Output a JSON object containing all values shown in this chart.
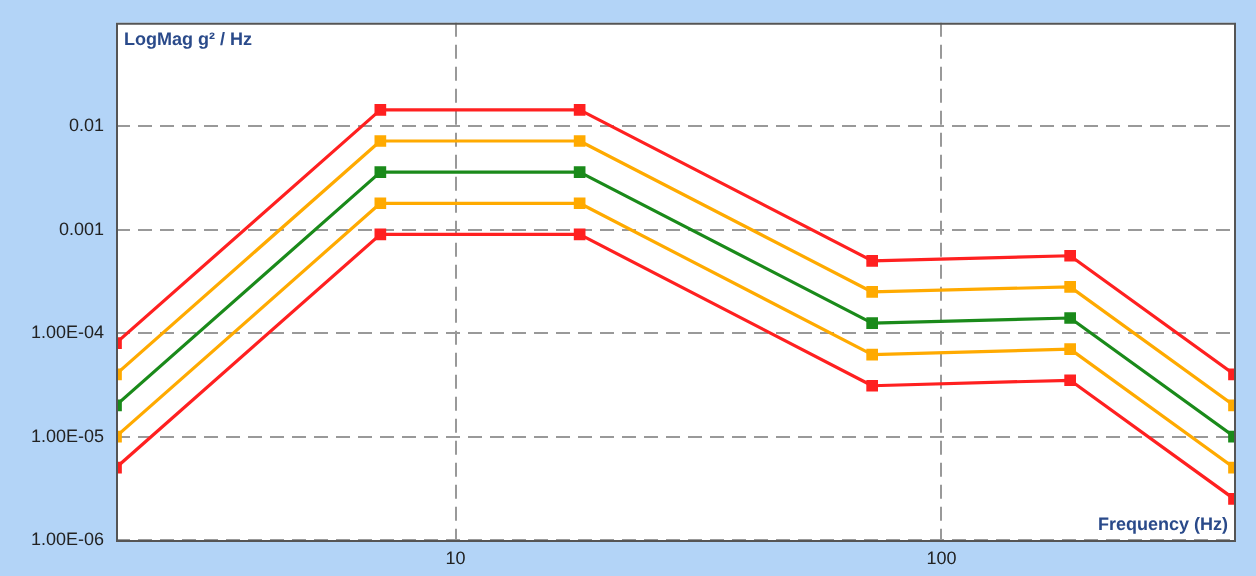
{
  "chart_data": {
    "type": "line",
    "ylabel": "LogMag g² / Hz",
    "xlabel": "Frequency (Hz)",
    "log": "xy",
    "grid": true,
    "legend": false,
    "marker": "square",
    "line_style": "solid",
    "x": [
      2,
      7,
      18,
      72,
      184,
      400
    ],
    "xlim": [
      2,
      400
    ],
    "xticks": [
      10,
      100
    ],
    "ylim": [
      1e-06,
      0.1
    ],
    "yticks": [
      {
        "value": 1e-06,
        "label": "1.00E-06"
      },
      {
        "value": 1e-05,
        "label": "1.00E-05"
      },
      {
        "value": 0.0001,
        "label": "1.00E-04"
      },
      {
        "value": 0.001,
        "label": "0.001"
      },
      {
        "value": 0.01,
        "label": "0.01"
      }
    ],
    "series": [
      {
        "color": "#ff2020",
        "values": [
          8e-05,
          0.0144,
          0.0144,
          0.0005,
          0.00056,
          4e-05
        ]
      },
      {
        "color": "#ffaa00",
        "values": [
          4e-05,
          0.0072,
          0.0072,
          0.00025,
          0.00028,
          2e-05
        ]
      },
      {
        "color": "#1a8a1a",
        "values": [
          2e-05,
          0.0036,
          0.0036,
          0.000125,
          0.00014,
          1e-05
        ]
      },
      {
        "color": "#ffaa00",
        "values": [
          1e-05,
          0.0018,
          0.0018,
          6.2e-05,
          7e-05,
          5e-06
        ]
      },
      {
        "color": "#ff2020",
        "values": [
          5e-06,
          0.0009,
          0.0009,
          3.1e-05,
          3.5e-05,
          2.5e-06
        ]
      }
    ]
  }
}
